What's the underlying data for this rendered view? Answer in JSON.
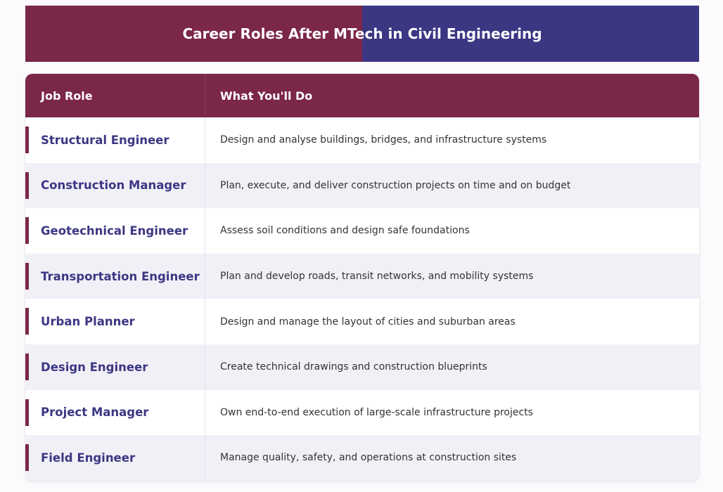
{
  "header": {
    "title": "Career Roles After MTech in Civil Engineering"
  },
  "table": {
    "columns": [
      "Job Role",
      "What You'll Do"
    ],
    "rows": [
      [
        "Structural Engineer",
        "Design and analyse buildings, bridges, and infrastructure systems"
      ],
      [
        "Construction Manager",
        "Plan, execute, and deliver construction projects on time and on budget"
      ],
      [
        "Geotechnical Engineer",
        "Assess soil conditions and design safe foundations"
      ],
      [
        "Transportation Engineer",
        "Plan and develop roads, transit networks, and mobility systems"
      ],
      [
        "Urban Planner",
        "Design and manage the layout of cities and suburban areas"
      ],
      [
        "Design Engineer",
        "Create technical drawings and construction blueprints"
      ],
      [
        "Project Manager",
        "Own end-to-end execution of large-scale infrastructure projects"
      ],
      [
        "Field Engineer",
        "Manage quality, safety, and operations at construction sites"
      ]
    ]
  }
}
